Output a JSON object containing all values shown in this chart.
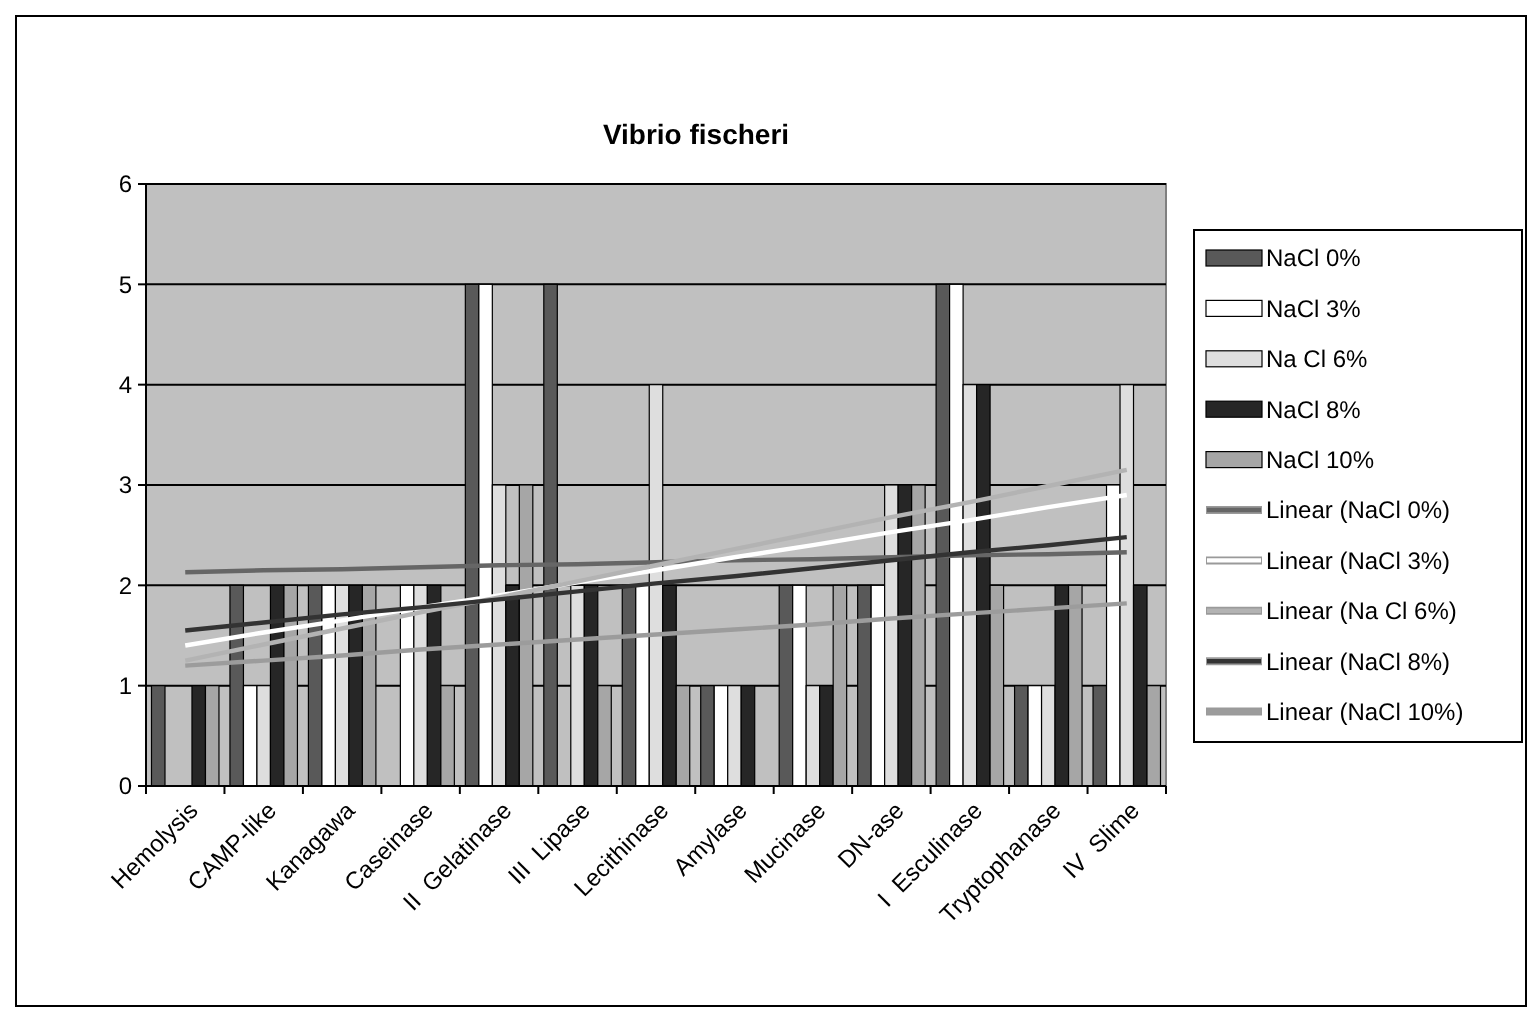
{
  "chart_data": {
    "type": "bar",
    "title": "Vibrio fischeri",
    "categories": [
      "Hemolysis",
      "CAMP-like",
      "Kanagawa",
      "Caseinase",
      "II  Gelatinase",
      "III  Lipase",
      "Lecithinase",
      "Amylase",
      "Mucinase",
      "DN-ase",
      "I  Esculinase",
      "Tryptophanase",
      "IV  Slime"
    ],
    "series": [
      {
        "name": "NaCl 0%",
        "color": "#595959",
        "values": [
          1,
          2,
          2,
          0,
          5,
          5,
          2,
          1,
          2,
          2,
          5,
          1,
          1
        ]
      },
      {
        "name": "NaCl 3%",
        "color": "#ffffff",
        "values": [
          0,
          1,
          2,
          2,
          5,
          0,
          2,
          1,
          2,
          2,
          5,
          1,
          3
        ]
      },
      {
        "name": "Na Cl 6%",
        "color": "#dedede",
        "values": [
          0,
          1,
          2,
          2,
          3,
          2,
          4,
          1,
          1,
          3,
          4,
          1,
          4
        ]
      },
      {
        "name": "NaCl 8%",
        "color": "#262626",
        "values": [
          1,
          2,
          2,
          2,
          2,
          2,
          2,
          1,
          1,
          3,
          4,
          2,
          2
        ]
      },
      {
        "name": "NaCl 10%",
        "color": "#a6a6a6",
        "values": [
          1,
          2,
          2,
          1,
          3,
          1,
          1,
          0,
          2,
          3,
          2,
          2,
          1
        ]
      },
      {
        "name": "Linear (NaCl 0%)",
        "type": "line",
        "color": "#666666",
        "values": [
          2.13,
          2.15,
          2.16,
          2.18,
          2.2,
          2.21,
          2.23,
          2.25,
          2.26,
          2.28,
          2.3,
          2.31,
          2.33
        ]
      },
      {
        "name": "Linear (NaCl 3%)",
        "type": "line",
        "color": "#ffffff",
        "values": [
          1.4,
          1.53,
          1.65,
          1.78,
          1.9,
          2.03,
          2.15,
          2.28,
          2.4,
          2.53,
          2.65,
          2.78,
          2.9
        ]
      },
      {
        "name": "Linear (Na Cl 6%)",
        "type": "line",
        "color": "#b3b3b3",
        "values": [
          1.25,
          1.41,
          1.57,
          1.73,
          1.88,
          2.04,
          2.2,
          2.36,
          2.52,
          2.68,
          2.83,
          2.99,
          3.15
        ]
      },
      {
        "name": "Linear (NaCl 8%)",
        "type": "line",
        "color": "#333333",
        "values": [
          1.55,
          1.63,
          1.71,
          1.78,
          1.86,
          1.94,
          2.02,
          2.09,
          2.17,
          2.25,
          2.33,
          2.4,
          2.48
        ]
      },
      {
        "name": "Linear (NaCl 10%)",
        "type": "line",
        "color": "#9c9c9c",
        "values": [
          1.2,
          1.25,
          1.3,
          1.36,
          1.41,
          1.46,
          1.51,
          1.56,
          1.61,
          1.67,
          1.72,
          1.77,
          1.82
        ]
      }
    ],
    "ylim": [
      0,
      6
    ],
    "yticks": [
      0,
      1,
      2,
      3,
      4,
      5,
      6
    ],
    "grid": "y",
    "legend": "right",
    "marker": "none",
    "line_style": "solid"
  }
}
